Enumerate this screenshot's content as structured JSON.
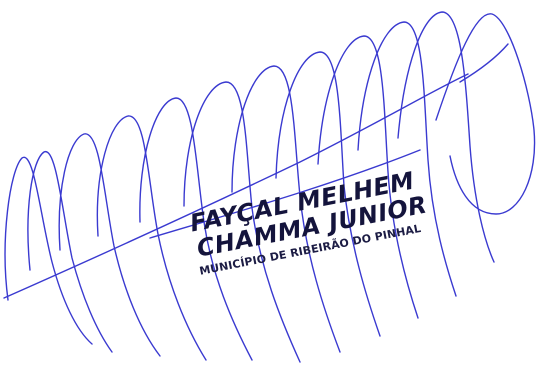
{
  "document": {
    "stamp": {
      "name_line_1": "FAYÇAL MELHEM",
      "name_line_2": "CHAMMA JUNIOR",
      "institution": "MUNICÍPIO DE RIBEIRÃO DO PINHAL"
    },
    "colors": {
      "ink": "#3a3ad0",
      "stamp_text": "#14143c",
      "paper": "#ffffff"
    }
  }
}
